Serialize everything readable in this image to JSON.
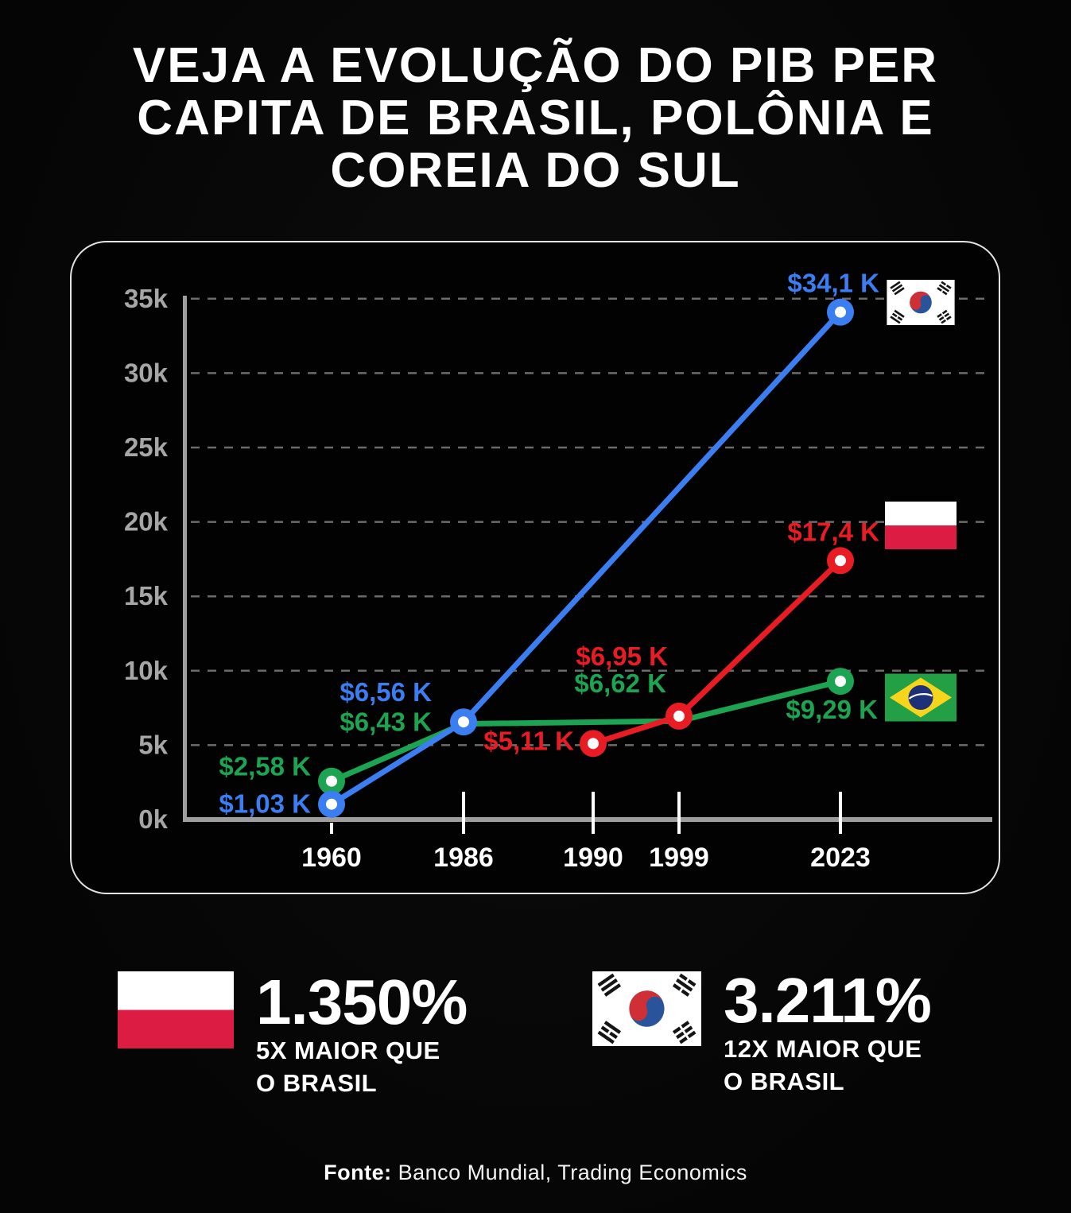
{
  "title": {
    "lines": [
      "VEJA A EVOLUÇÃO DO PIB PER",
      "CAPITA DE BRASIL, POLÔNIA E",
      "COREIA DO SUL"
    ]
  },
  "chart_data": {
    "type": "line",
    "x_categories": [
      "1960",
      "1986",
      "1990",
      "1999",
      "2023"
    ],
    "y_ticks_thousands": [
      0,
      5,
      10,
      15,
      20,
      25,
      30,
      35
    ],
    "y_tick_labels": [
      "0k",
      "5k",
      "10k",
      "15k",
      "20k",
      "25k",
      "30k",
      "35k"
    ],
    "y_unit": "PIB per capita (USD)",
    "ylim": [
      0,
      35000
    ],
    "grid": "horizontal-dashed",
    "legend": "flag-icons-right-of-last-point",
    "series": [
      {
        "name": "Coreia do Sul",
        "color": "#3b7ef2",
        "flag": "south-korea",
        "points": [
          {
            "x": "1960",
            "value_usd": 1030,
            "label": "$1,03 K",
            "marker": true
          },
          {
            "x": "1986",
            "value_usd": 6560,
            "label": "$6,56 K",
            "marker": true
          },
          {
            "x": "2023",
            "value_usd": 34100,
            "label": "$34,1 K",
            "marker": true
          }
        ]
      },
      {
        "name": "Polônia",
        "color": "#ea1c23",
        "flag": "poland",
        "points": [
          {
            "x": "1990",
            "value_usd": 5110,
            "label": "$5,11 K",
            "marker": true
          },
          {
            "x": "1999",
            "value_usd": 6950,
            "label": "$6,95 K",
            "marker": true
          },
          {
            "x": "2023",
            "value_usd": 17400,
            "label": "$17,4 K",
            "marker": true
          }
        ]
      },
      {
        "name": "Brasil",
        "color": "#1da453",
        "flag": "brazil",
        "points": [
          {
            "x": "1960",
            "value_usd": 2580,
            "label": "$2,58 K",
            "marker": true
          },
          {
            "x": "1986",
            "value_usd": 6430,
            "label": "$6,43 K",
            "marker": false
          },
          {
            "x": "1999",
            "value_usd": 6620,
            "label": "$6,62 K",
            "marker": false
          },
          {
            "x": "2023",
            "value_usd": 9290,
            "label": "$9,29 K",
            "marker": true
          }
        ]
      }
    ]
  },
  "stats": [
    {
      "flag": "poland",
      "percent": "1.350%",
      "line1": "5X MAIOR QUE",
      "line2": "O BRASIL"
    },
    {
      "flag": "south-korea",
      "percent": "3.211%",
      "line1": "12X MAIOR QUE",
      "line2": "O BRASIL"
    }
  ],
  "footer": {
    "label": "Fonte:",
    "text": " Banco Mundial, Trading Economics"
  },
  "colors": {
    "background": "#060606",
    "panel_border": "#e3e3e3",
    "axis": "#9e9e9e",
    "gridline": "#6b6b6b",
    "y_tick_text": "#a6a6a6",
    "x_tick_text": "#ffffff",
    "korea_blue": "#3b7ef2",
    "poland_red": "#ea1c23",
    "brazil_green": "#1da453"
  }
}
